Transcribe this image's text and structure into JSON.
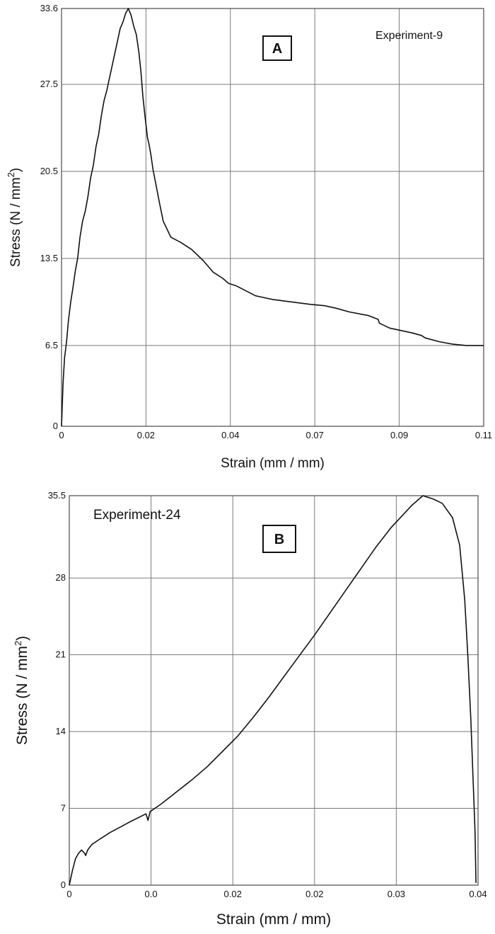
{
  "chart_data": [
    {
      "type": "line",
      "panel_label": "A",
      "annotation": "Experiment-9",
      "xlabel": "Strain (mm / mm)",
      "ylabel_main": "Stress (N / mm",
      "ylabel_sup": "2",
      "ylabel_close": ")",
      "ylim": [
        0,
        33.6
      ],
      "yticks": [
        "0",
        "6.5",
        "13.5",
        "20.5",
        "27.5",
        "33.6"
      ],
      "ytick_values": [
        0,
        6.5,
        13.5,
        20.5,
        27.5,
        33.6
      ],
      "xlim": [
        0,
        0.11
      ],
      "xticks": [
        "0",
        "0.02",
        "0.04",
        "0.07",
        "0.09",
        "0.11"
      ],
      "xtick_values": [
        0,
        0.022,
        0.044,
        0.066,
        0.088,
        0.11
      ],
      "grid": true,
      "series": [
        {
          "x": [
            0,
            0.0004,
            0.0008,
            0.0013,
            0.0018,
            0.0024,
            0.003,
            0.0036,
            0.0042,
            0.0048,
            0.0055,
            0.0062,
            0.0069,
            0.0076,
            0.0083,
            0.009,
            0.0097,
            0.0104,
            0.0111,
            0.0118,
            0.0125,
            0.0132,
            0.0139,
            0.0146,
            0.0153,
            0.016,
            0.0167,
            0.0174,
            0.0181,
            0.0188,
            0.0195,
            0.0202,
            0.0207,
            0.0212,
            0.0218,
            0.0224,
            0.0228,
            0.0233,
            0.0238,
            0.0245,
            0.0255,
            0.0265,
            0.0285,
            0.031,
            0.034,
            0.037,
            0.0395,
            0.042,
            0.0435,
            0.0455,
            0.048,
            0.0505,
            0.055,
            0.06,
            0.065,
            0.0685,
            0.0715,
            0.075,
            0.08,
            0.0825,
            0.0828,
            0.0855,
            0.0885,
            0.0915,
            0.0938,
            0.0948,
            0.0985,
            0.102,
            0.1055,
            0.108,
            0.11
          ],
          "y": [
            0,
            3.5,
            5.5,
            6.8,
            8.5,
            10.0,
            11.2,
            12.5,
            13.5,
            15.2,
            16.5,
            17.3,
            18.5,
            20.0,
            21.0,
            22.5,
            23.5,
            25.0,
            26.2,
            27.0,
            28.0,
            29.0,
            30.0,
            31.0,
            32.0,
            32.5,
            33.2,
            33.6,
            33.1,
            32.2,
            31.5,
            30.0,
            28.5,
            26.5,
            24.8,
            23.2,
            22.7,
            21.8,
            20.7,
            19.6,
            18.0,
            16.5,
            15.2,
            14.8,
            14.2,
            13.3,
            12.4,
            11.9,
            11.5,
            11.3,
            10.9,
            10.5,
            10.2,
            10.0,
            9.8,
            9.7,
            9.5,
            9.2,
            8.9,
            8.6,
            8.3,
            7.9,
            7.7,
            7.5,
            7.3,
            7.1,
            6.8,
            6.6,
            6.5,
            6.5,
            6.5
          ]
        }
      ]
    },
    {
      "type": "line",
      "panel_label": "B",
      "annotation": "Experiment-24",
      "xlabel": "Strain (mm / mm)",
      "ylabel_main": "Stress (N / mm",
      "ylabel_sup": "2",
      "ylabel_close": ")",
      "ylim": [
        0,
        35.5
      ],
      "yticks": [
        "0",
        "7",
        "14",
        "21",
        "28",
        "35.5"
      ],
      "ytick_values": [
        0,
        7,
        14,
        21,
        28,
        35.5
      ],
      "xlim": [
        0,
        0.04
      ],
      "xticks": [
        "0",
        "0.0",
        "0.02",
        "0.02",
        "0.03",
        "0.04"
      ],
      "xtick_values": [
        0,
        0.008,
        0.016,
        0.024,
        0.032,
        0.04
      ],
      "grid": true,
      "series": [
        {
          "x": [
            0,
            0.0003,
            0.0006,
            0.0009,
            0.0012,
            0.0015,
            0.0016,
            0.0018,
            0.0022,
            0.003,
            0.004,
            0.005,
            0.006,
            0.0075,
            0.0077,
            0.0079,
            0.009,
            0.0105,
            0.012,
            0.0135,
            0.015,
            0.0165,
            0.018,
            0.0195,
            0.021,
            0.0225,
            0.024,
            0.0255,
            0.027,
            0.0285,
            0.03,
            0.0315,
            0.0335,
            0.0346,
            0.0356,
            0.0365,
            0.0375,
            0.0382,
            0.0387,
            0.039,
            0.0393,
            0.0395,
            0.0397,
            0.0398
          ],
          "y": [
            0,
            1.3,
            2.4,
            2.9,
            3.2,
            2.9,
            2.7,
            3.2,
            3.7,
            4.2,
            4.8,
            5.3,
            5.8,
            6.5,
            5.9,
            6.7,
            7.4,
            8.5,
            9.6,
            10.8,
            12.2,
            13.6,
            15.3,
            17.1,
            19.0,
            20.9,
            22.8,
            24.8,
            26.8,
            28.8,
            30.8,
            32.6,
            34.6,
            35.5,
            35.2,
            34.8,
            33.5,
            31.0,
            26.0,
            21.0,
            15.0,
            10.0,
            5.0,
            0.2
          ]
        }
      ]
    }
  ]
}
